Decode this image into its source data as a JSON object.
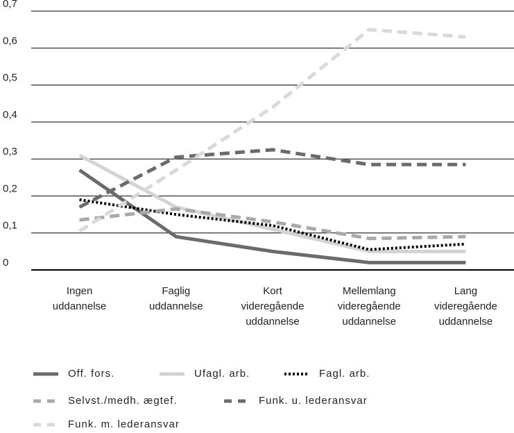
{
  "chart_data": {
    "type": "line",
    "categories": [
      "Ingen uddannelse",
      "Faglig uddannelse",
      "Kort videregående uddannelse",
      "Mellemlang videregående uddannelse",
      "Lang videregående uddannelse"
    ],
    "series": [
      {
        "name": "Off. fors.",
        "color": "#6b6b6b",
        "style": "solid",
        "values": [
          0.27,
          0.09,
          0.05,
          0.02,
          0.02
        ]
      },
      {
        "name": "Ufagl. arb.",
        "color": "#d3d3d3",
        "style": "solid",
        "values": [
          0.31,
          0.17,
          0.11,
          0.05,
          0.05
        ]
      },
      {
        "name": "Fagl. arb.",
        "color": "#000000",
        "style": "dotted",
        "values": [
          0.19,
          0.15,
          0.12,
          0.055,
          0.07
        ]
      },
      {
        "name": "Selvst./medh. ægtef.",
        "color": "#a9a9a9",
        "style": "dashed",
        "values": [
          0.135,
          0.165,
          0.13,
          0.085,
          0.09
        ]
      },
      {
        "name": "Funk. u. lederansvar",
        "color": "#6b6b6b",
        "style": "dashed",
        "values": [
          0.17,
          0.305,
          0.325,
          0.285,
          0.285
        ]
      },
      {
        "name": "Funk. m. lederansvar",
        "color": "#d9d9d9",
        "style": "dashed",
        "values": [
          0.105,
          0.27,
          0.44,
          0.65,
          0.63
        ]
      }
    ],
    "ylim": [
      0,
      0.7
    ],
    "yticks": [
      0,
      {
        "value": 0.1,
        "label": "0,1"
      },
      {
        "value": 0.2,
        "label": "0,2"
      },
      {
        "value": 0.3,
        "label": "0,3"
      },
      {
        "value": 0.4,
        "label": "0,4"
      },
      {
        "value": 0.5,
        "label": "0,5"
      },
      {
        "value": 0.6,
        "label": "0,6"
      },
      {
        "value": 0.7,
        "label": "0,7"
      }
    ],
    "grid": true,
    "legend": "bottom"
  }
}
